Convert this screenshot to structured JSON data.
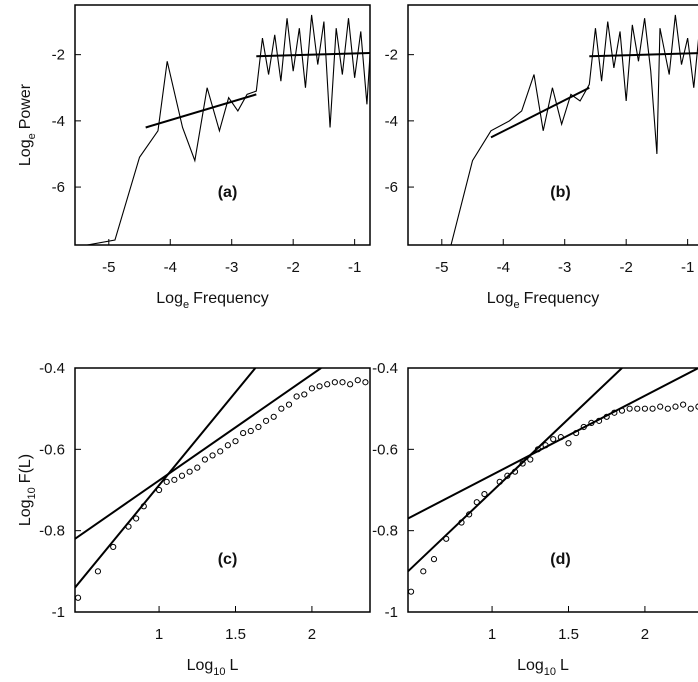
{
  "chart_data": [
    {
      "type": "line",
      "annotation": "(a)",
      "xlabel": [
        "Log",
        "e",
        "Frequency"
      ],
      "ylabel": [
        "Log",
        "e",
        "Power"
      ],
      "xlim": [
        -5.55,
        -0.75
      ],
      "ylim": [
        -7.75,
        -0.5
      ],
      "xticks": [
        -5,
        -4,
        -3,
        -2,
        -1
      ],
      "yticks": [
        -2,
        -4,
        -6
      ],
      "series": [
        {
          "mode": "line",
          "color": "#000000",
          "x": [
            -5.5,
            -4.9,
            -4.5,
            -4.2,
            -4.05,
            -3.8,
            -3.6,
            -3.4,
            -3.2,
            -3.05,
            -2.9,
            -2.75,
            -2.6,
            -2.5,
            -2.4,
            -2.3,
            -2.2,
            -2.1,
            -2.0,
            -1.9,
            -1.8,
            -1.7,
            -1.6,
            -1.5,
            -1.4,
            -1.3,
            -1.2,
            -1.1,
            -1.0,
            -0.9,
            -0.8,
            -0.75
          ],
          "values": [
            -7.8,
            -7.6,
            -5.1,
            -4.3,
            -2.2,
            -4.2,
            -5.2,
            -3.0,
            -4.3,
            -3.3,
            -3.7,
            -3.2,
            -3.1,
            -1.5,
            -2.6,
            -1.4,
            -2.8,
            -0.9,
            -2.5,
            -1.2,
            -3.0,
            -0.8,
            -2.3,
            -1.0,
            -4.2,
            -1.2,
            -2.6,
            -0.9,
            -2.7,
            -1.3,
            -3.5,
            -2.0
          ]
        },
        {
          "mode": "line",
          "color": "#000000",
          "x": [
            -4.4,
            -2.6
          ],
          "values": [
            -4.2,
            -3.2
          ]
        },
        {
          "mode": "line",
          "color": "#000000",
          "x": [
            -2.6,
            -0.75
          ],
          "values": [
            -2.05,
            -1.95
          ]
        }
      ]
    },
    {
      "type": "line",
      "annotation": "(b)",
      "xlabel": [
        "Log",
        "e",
        "Frequency"
      ],
      "xlim": [
        -5.55,
        -0.75
      ],
      "ylim": [
        -7.75,
        -0.5
      ],
      "xticks": [
        -5,
        -4,
        -3,
        -2,
        -1
      ],
      "yticks": [
        -2,
        -4,
        -6
      ],
      "series": [
        {
          "mode": "line",
          "color": "#000000",
          "x": [
            -4.85,
            -4.5,
            -4.2,
            -3.9,
            -3.7,
            -3.5,
            -3.35,
            -3.2,
            -3.05,
            -2.9,
            -2.75,
            -2.6,
            -2.5,
            -2.4,
            -2.3,
            -2.2,
            -2.1,
            -2.0,
            -1.9,
            -1.8,
            -1.7,
            -1.6,
            -1.5,
            -1.45,
            -1.3,
            -1.2,
            -1.1,
            -1.0,
            -0.9,
            -0.8,
            -0.75
          ],
          "values": [
            -7.75,
            -5.2,
            -4.3,
            -4.0,
            -3.7,
            -2.6,
            -4.3,
            -3.0,
            -4.1,
            -3.2,
            -3.4,
            -2.9,
            -1.2,
            -2.8,
            -1.0,
            -2.4,
            -1.3,
            -3.4,
            -1.1,
            -2.2,
            -0.9,
            -2.5,
            -5.0,
            -1.2,
            -2.6,
            -0.8,
            -2.3,
            -1.5,
            -3.0,
            -1.1,
            -2.2
          ]
        },
        {
          "mode": "line",
          "color": "#000000",
          "x": [
            -4.2,
            -2.6
          ],
          "values": [
            -4.5,
            -3.0
          ]
        },
        {
          "mode": "line",
          "color": "#000000",
          "x": [
            -2.6,
            -0.75
          ],
          "values": [
            -2.05,
            -1.95
          ]
        }
      ]
    },
    {
      "type": "scatter",
      "annotation": "(c)",
      "xlabel": [
        "Log",
        "10",
        "L"
      ],
      "ylabel": [
        "Log",
        "10",
        "F(L)"
      ],
      "xlim": [
        0.45,
        2.38
      ],
      "ylim": [
        -1,
        -0.4
      ],
      "xticks": [
        1,
        1.5,
        2
      ],
      "yticks": [
        -0.4,
        -0.6,
        -0.8,
        -1
      ],
      "series": [
        {
          "mode": "markers",
          "color": "#000000",
          "x": [
            0.47,
            0.6,
            0.7,
            0.8,
            0.85,
            0.9,
            1.0,
            1.05,
            1.1,
            1.15,
            1.2,
            1.25,
            1.3,
            1.35,
            1.4,
            1.45,
            1.5,
            1.55,
            1.6,
            1.65,
            1.7,
            1.75,
            1.8,
            1.85,
            1.9,
            1.95,
            2.0,
            2.05,
            2.1,
            2.15,
            2.2,
            2.25,
            2.3,
            2.35
          ],
          "values": [
            -0.965,
            -0.9,
            -0.84,
            -0.79,
            -0.77,
            -0.74,
            -0.7,
            -0.68,
            -0.675,
            -0.665,
            -0.655,
            -0.645,
            -0.625,
            -0.615,
            -0.605,
            -0.59,
            -0.58,
            -0.56,
            -0.555,
            -0.545,
            -0.53,
            -0.52,
            -0.5,
            -0.49,
            -0.47,
            -0.465,
            -0.45,
            -0.445,
            -0.44,
            -0.435,
            -0.435,
            -0.44,
            -0.43,
            -0.435
          ]
        },
        {
          "mode": "line",
          "color": "#000000",
          "x": [
            0.45,
            1.63
          ],
          "values": [
            -0.94,
            -0.4
          ]
        },
        {
          "mode": "line",
          "color": "#000000",
          "x": [
            0.45,
            2.06
          ],
          "values": [
            -0.82,
            -0.4
          ]
        }
      ]
    },
    {
      "type": "scatter",
      "annotation": "(d)",
      "xlabel": [
        "Log",
        "10",
        "L"
      ],
      "xlim": [
        0.45,
        2.38
      ],
      "ylim": [
        -1,
        -0.4
      ],
      "xticks": [
        1,
        1.5,
        2
      ],
      "yticks": [
        -0.4,
        -0.6,
        -0.8,
        -1
      ],
      "series": [
        {
          "mode": "markers",
          "color": "#000000",
          "x": [
            0.47,
            0.55,
            0.62,
            0.7,
            0.8,
            0.85,
            0.9,
            0.95,
            1.05,
            1.1,
            1.15,
            1.2,
            1.25,
            1.3,
            1.35,
            1.4,
            1.45,
            1.5,
            1.55,
            1.6,
            1.65,
            1.7,
            1.75,
            1.8,
            1.85,
            1.9,
            1.95,
            2.0,
            2.05,
            2.1,
            2.15,
            2.2,
            2.25,
            2.3,
            2.35
          ],
          "values": [
            -0.95,
            -0.9,
            -0.87,
            -0.82,
            -0.78,
            -0.76,
            -0.73,
            -0.71,
            -0.68,
            -0.665,
            -0.655,
            -0.635,
            -0.625,
            -0.6,
            -0.59,
            -0.575,
            -0.57,
            -0.585,
            -0.56,
            -0.545,
            -0.535,
            -0.53,
            -0.52,
            -0.51,
            -0.505,
            -0.5,
            -0.5,
            -0.5,
            -0.5,
            -0.495,
            -0.5,
            -0.495,
            -0.49,
            -0.5,
            -0.495
          ]
        },
        {
          "mode": "line",
          "color": "#000000",
          "x": [
            0.45,
            1.85
          ],
          "values": [
            -0.9,
            -0.4
          ]
        },
        {
          "mode": "line",
          "color": "#000000",
          "x": [
            0.45,
            2.35
          ],
          "values": [
            -0.77,
            -0.4
          ]
        }
      ]
    }
  ]
}
